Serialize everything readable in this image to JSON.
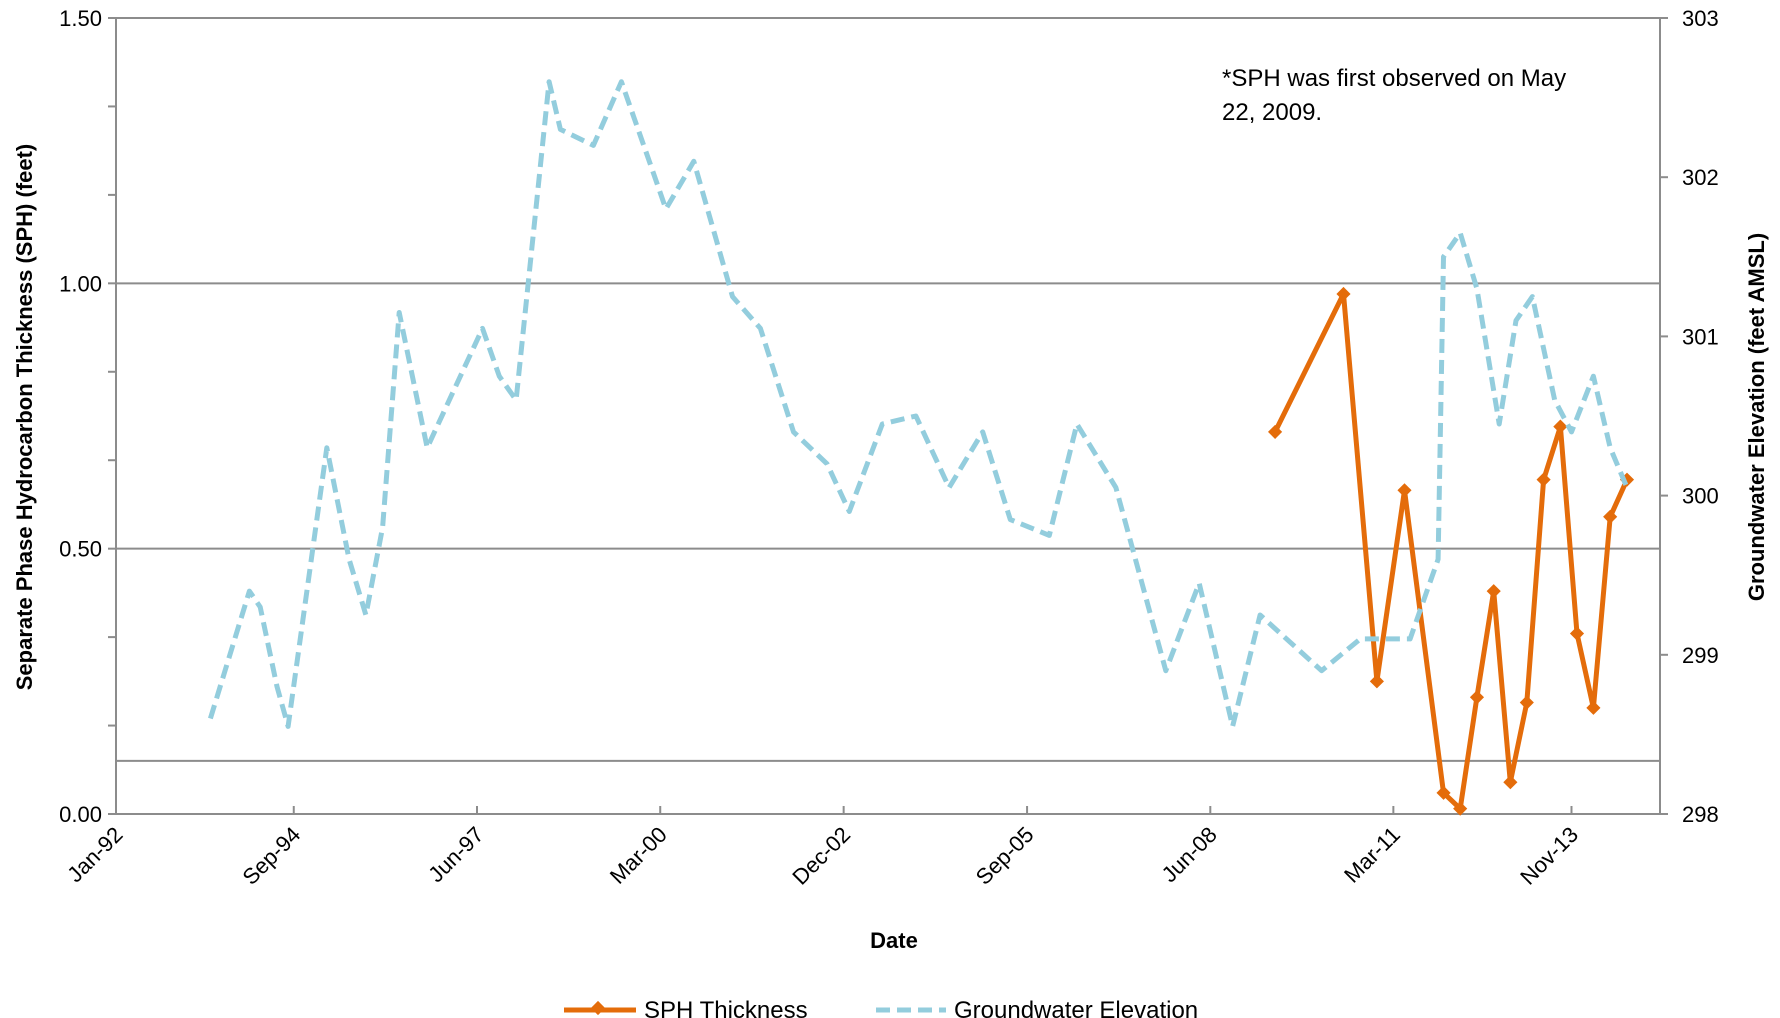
{
  "chart_data": {
    "type": "line",
    "title": "",
    "xlabel": "Date",
    "ylabel_left": "Separate Phase Hydrocarbon Thickness (SPH) (feet)",
    "ylabel_right": "Groundwater Elevation (feet AMSL)",
    "x_tick_labels": [
      "Jan-92",
      "Sep-94",
      "Jun-97",
      "Mar-00",
      "Dec-02",
      "Sep-05",
      "Jun-08",
      "Mar-11",
      "Nov-13"
    ],
    "x_tick_dates": [
      "1992-01-01",
      "1994-09-01",
      "1997-06-01",
      "2000-03-01",
      "2002-12-01",
      "2005-09-01",
      "2008-06-01",
      "2011-03-01",
      "2013-11-01"
    ],
    "x_range": [
      "1992-01-01",
      "2015-03-01"
    ],
    "ylim_left": [
      0,
      1.5
    ],
    "yticks_left": [
      "0.00",
      "0.50",
      "1.00",
      "1.50"
    ],
    "ylim_right": [
      298,
      303
    ],
    "yticks_right": [
      "298",
      "299",
      "300",
      "301",
      "302",
      "303"
    ],
    "gridlines_left": [
      0.1,
      0.5,
      1.0
    ],
    "annotation": [
      "*SPH was first observed on May",
      "22, 2009."
    ],
    "legend_position": "bottom",
    "series": [
      {
        "name": "SPH Thickness",
        "axis": "left",
        "color": "#e46c0a",
        "style": "solid-diamond",
        "points": [
          [
            "2009-05-22",
            0.72
          ],
          [
            "2010-06-01",
            0.98
          ],
          [
            "2010-12-01",
            0.25
          ],
          [
            "2011-05-01",
            0.61
          ],
          [
            "2011-12-01",
            0.04
          ],
          [
            "2012-03-01",
            0.01
          ],
          [
            "2012-06-01",
            0.22
          ],
          [
            "2012-09-01",
            0.42
          ],
          [
            "2012-12-01",
            0.06
          ],
          [
            "2013-03-01",
            0.21
          ],
          [
            "2013-06-01",
            0.63
          ],
          [
            "2013-09-01",
            0.73
          ],
          [
            "2013-12-01",
            0.34
          ],
          [
            "2014-03-01",
            0.2
          ],
          [
            "2014-06-01",
            0.56
          ],
          [
            "2014-09-01",
            0.63
          ]
        ]
      },
      {
        "name": "Groundwater Elevation",
        "axis": "right",
        "color": "#93cddd",
        "style": "dashed",
        "points": [
          [
            "1993-06-01",
            298.6
          ],
          [
            "1994-01-01",
            299.4
          ],
          [
            "1994-03-01",
            299.3
          ],
          [
            "1994-06-01",
            298.8
          ],
          [
            "1994-08-01",
            298.55
          ],
          [
            "1995-03-01",
            300.3
          ],
          [
            "1995-07-01",
            299.6
          ],
          [
            "1995-10-01",
            299.25
          ],
          [
            "1996-01-01",
            299.8
          ],
          [
            "1996-04-01",
            301.15
          ],
          [
            "1996-09-01",
            300.3
          ],
          [
            "1997-07-01",
            301.05
          ],
          [
            "1997-10-01",
            300.75
          ],
          [
            "1998-01-01",
            300.6
          ],
          [
            "1998-07-01",
            302.6
          ],
          [
            "1998-09-01",
            302.3
          ],
          [
            "1999-03-01",
            302.2
          ],
          [
            "1999-08-01",
            302.6
          ],
          [
            "2000-01-01",
            302.1
          ],
          [
            "2000-04-01",
            301.8
          ],
          [
            "2000-09-01",
            302.1
          ],
          [
            "2001-04-01",
            301.25
          ],
          [
            "2001-09-01",
            301.05
          ],
          [
            "2002-03-01",
            300.4
          ],
          [
            "2002-09-01",
            300.2
          ],
          [
            "2003-01-01",
            299.9
          ],
          [
            "2003-07-01",
            300.45
          ],
          [
            "2004-01-01",
            300.5
          ],
          [
            "2004-07-01",
            300.05
          ],
          [
            "2005-01-01",
            300.4
          ],
          [
            "2005-06-01",
            299.85
          ],
          [
            "2006-01-01",
            299.75
          ],
          [
            "2006-06-01",
            300.45
          ],
          [
            "2007-01-01",
            300.05
          ],
          [
            "2007-10-01",
            298.9
          ],
          [
            "2008-04-01",
            299.45
          ],
          [
            "2008-10-01",
            298.55
          ],
          [
            "2009-03-01",
            299.25
          ],
          [
            "2010-02-01",
            298.9
          ],
          [
            "2010-09-01",
            299.1
          ],
          [
            "2011-06-01",
            299.1
          ],
          [
            "2011-11-01",
            299.6
          ],
          [
            "2011-12-01",
            301.5
          ],
          [
            "2012-03-01",
            301.65
          ],
          [
            "2012-06-01",
            301.3
          ],
          [
            "2012-10-01",
            300.45
          ],
          [
            "2013-01-01",
            301.1
          ],
          [
            "2013-04-01",
            301.25
          ],
          [
            "2013-08-01",
            300.6
          ],
          [
            "2013-11-01",
            300.4
          ],
          [
            "2014-03-01",
            300.75
          ],
          [
            "2014-06-01",
            300.3
          ],
          [
            "2014-09-01",
            300.05
          ]
        ]
      }
    ]
  }
}
